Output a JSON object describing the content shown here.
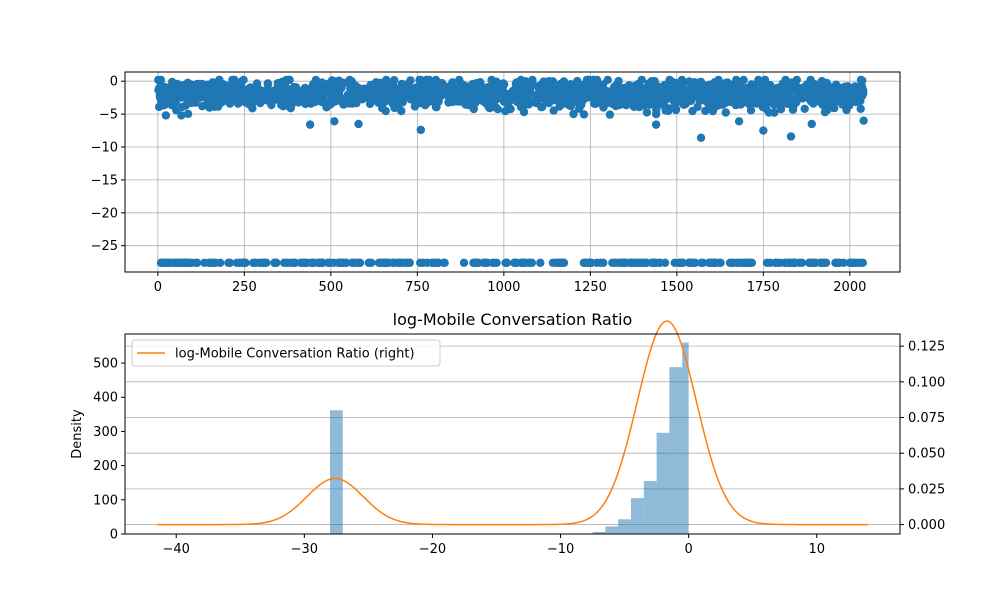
{
  "chart_data": [
    {
      "type": "scatter",
      "title": "",
      "xlabel": "",
      "ylabel": "",
      "xlim": [
        -95,
        2145
      ],
      "ylim": [
        -29.0,
        1.4
      ],
      "xticks": [
        0,
        250,
        500,
        750,
        1000,
        1250,
        1500,
        1750,
        2000
      ],
      "yticks": [
        0,
        -5,
        -10,
        -15,
        -20,
        -25
      ],
      "grid": true,
      "color": "#1f77b4",
      "n_points": 2041,
      "main_cluster": {
        "x_range": [
          0,
          2040
        ],
        "y_center": -2.0,
        "y_range": [
          -7.5,
          0.2
        ],
        "outliers": [
          {
            "x": 440,
            "y": -6.6
          },
          {
            "x": 510,
            "y": -6.1
          },
          {
            "x": 580,
            "y": -6.5
          },
          {
            "x": 760,
            "y": -7.4
          },
          {
            "x": 1440,
            "y": -6.6
          },
          {
            "x": 1570,
            "y": -8.6
          },
          {
            "x": 1680,
            "y": -6.1
          },
          {
            "x": 1750,
            "y": -7.5
          },
          {
            "x": 1830,
            "y": -8.4
          },
          {
            "x": 1890,
            "y": -6.5
          },
          {
            "x": 2040,
            "y": -6.0
          }
        ]
      },
      "floor_cluster": {
        "y": -27.6,
        "x_range": [
          0,
          2040
        ],
        "gaps": [
          [
            830,
            880
          ],
          [
            1010,
            1030
          ],
          [
            1180,
            1230
          ],
          [
            1290,
            1310
          ],
          [
            1720,
            1760
          ]
        ]
      }
    },
    {
      "type": "histogram+kde",
      "title": "log-Mobile Conversation Ratio",
      "xlabel": "",
      "ylabel": "Density",
      "xlim": [
        -44,
        16.5
      ],
      "ylim_left": [
        0,
        585
      ],
      "ylim_right": [
        -0.0066,
        0.1335
      ],
      "xticks": [
        -40,
        -30,
        -20,
        -10,
        0,
        10
      ],
      "yticks_left": [
        0,
        100,
        200,
        300,
        400,
        500
      ],
      "yticks_right": [
        0.0,
        0.025,
        0.05,
        0.075,
        0.1,
        0.125
      ],
      "yticks_right_labels": [
        "0.000",
        "0.025",
        "0.050",
        "0.075",
        "0.100",
        "0.125"
      ],
      "grid": "right-axis horizontal",
      "histogram": {
        "color": "#1f77b4",
        "alpha": 0.5,
        "bins": [
          {
            "x0": -28.0,
            "x1": -27.0,
            "count": 362
          },
          {
            "x0": -8.5,
            "x1": -7.5,
            "count": 1
          },
          {
            "x0": -7.5,
            "x1": -6.5,
            "count": 6
          },
          {
            "x0": -6.5,
            "x1": -5.5,
            "count": 22
          },
          {
            "x0": -5.5,
            "x1": -4.5,
            "count": 43
          },
          {
            "x0": -4.5,
            "x1": -3.5,
            "count": 105
          },
          {
            "x0": -3.5,
            "x1": -2.5,
            "count": 155
          },
          {
            "x0": -2.5,
            "x1": -1.5,
            "count": 296
          },
          {
            "x0": -1.5,
            "x1": -0.5,
            "count": 488
          },
          {
            "x0": -0.5,
            "x1": 0.0,
            "count": 560
          }
        ]
      },
      "kde": {
        "name": "log-Mobile Conversation Ratio (right)",
        "color": "#ff7f0e",
        "x_range": [
          -41.5,
          14
        ],
        "components": [
          {
            "weight": 0.178,
            "mean": -27.6,
            "sd": 2.2
          },
          {
            "weight": 0.822,
            "mean": -1.7,
            "sd": 2.3
          }
        ]
      },
      "legend": "top-left"
    }
  ]
}
